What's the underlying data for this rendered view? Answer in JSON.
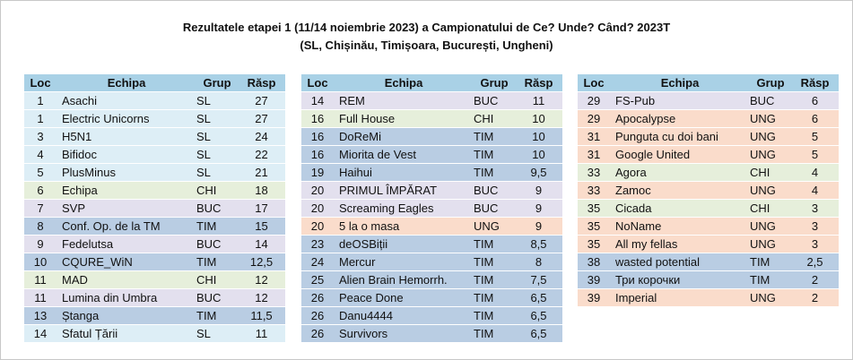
{
  "title_line1": "Rezultatele etapei 1 (11/14 noiembrie 2023) a Campionatului de Ce? Unde? Când? 2023T",
  "title_line2": "(SL, Chișinău, Timișoara, București, Ungheni)",
  "headers": {
    "loc": "Loc",
    "team": "Echipa",
    "group": "Grup",
    "points": "Răsp"
  },
  "tables": [
    {
      "rows": [
        {
          "loc": "1",
          "team": "Asachi",
          "group": "SL",
          "points": "27"
        },
        {
          "loc": "1",
          "team": "Electric Unicorns",
          "group": "SL",
          "points": "27"
        },
        {
          "loc": "3",
          "team": "H5N1",
          "group": "SL",
          "points": "24"
        },
        {
          "loc": "4",
          "team": "Bifidoc",
          "group": "SL",
          "points": "22"
        },
        {
          "loc": "5",
          "team": "PlusMinus",
          "group": "SL",
          "points": "21"
        },
        {
          "loc": "6",
          "team": "Echipa",
          "group": "CHI",
          "points": "18"
        },
        {
          "loc": "7",
          "team": "SVP",
          "group": "BUC",
          "points": "17"
        },
        {
          "loc": "8",
          "team": "Conf. Op. de la TM",
          "group": "TIM",
          "points": "15"
        },
        {
          "loc": "9",
          "team": "Fedelutsa",
          "group": "BUC",
          "points": "14"
        },
        {
          "loc": "10",
          "team": "CQURE_WiN",
          "group": "TIM",
          "points": "12,5"
        },
        {
          "loc": "11",
          "team": "MAD",
          "group": "CHI",
          "points": "12"
        },
        {
          "loc": "11",
          "team": "Lumina din Umbra",
          "group": "BUC",
          "points": "12"
        },
        {
          "loc": "13",
          "team": "Ștanga",
          "group": "TIM",
          "points": "11,5"
        },
        {
          "loc": "14",
          "team": "Sfatul Țării",
          "group": "SL",
          "points": "11"
        }
      ]
    },
    {
      "rows": [
        {
          "loc": "14",
          "team": "REM",
          "group": "BUC",
          "points": "11"
        },
        {
          "loc": "16",
          "team": "Full House",
          "group": "CHI",
          "points": "10"
        },
        {
          "loc": "16",
          "team": "DoReMi",
          "group": "TIM",
          "points": "10"
        },
        {
          "loc": "16",
          "team": "Miorita de Vest",
          "group": "TIM",
          "points": "10"
        },
        {
          "loc": "19",
          "team": "Haihui",
          "group": "TIM",
          "points": "9,5"
        },
        {
          "loc": "20",
          "team": "PRIMUL ÎMPĂRAT",
          "group": "BUC",
          "points": "9"
        },
        {
          "loc": "20",
          "team": "Screaming Eagles",
          "group": "BUC",
          "points": "9"
        },
        {
          "loc": "20",
          "team": "5 la o masa",
          "group": "UNG",
          "points": "9"
        },
        {
          "loc": "23",
          "team": "deOSBiții",
          "group": "TIM",
          "points": "8,5"
        },
        {
          "loc": "24",
          "team": "Mercur",
          "group": "TIM",
          "points": "8"
        },
        {
          "loc": "25",
          "team": "Alien Brain Hemorrh.",
          "group": "TIM",
          "points": "7,5"
        },
        {
          "loc": "26",
          "team": "Peace Done",
          "group": "TIM",
          "points": "6,5"
        },
        {
          "loc": "26",
          "team": "Danu4444",
          "group": "TIM",
          "points": "6,5"
        },
        {
          "loc": "26",
          "team": "Survivors",
          "group": "TIM",
          "points": "6,5"
        }
      ]
    },
    {
      "rows": [
        {
          "loc": "29",
          "team": "FS-Pub",
          "group": "BUC",
          "points": "6"
        },
        {
          "loc": "29",
          "team": "Apocalypse",
          "group": "UNG",
          "points": "6"
        },
        {
          "loc": "31",
          "team": "Punguta cu doi bani",
          "group": "UNG",
          "points": "5"
        },
        {
          "loc": "31",
          "team": "Google United",
          "group": "UNG",
          "points": "5"
        },
        {
          "loc": "33",
          "team": "Agora",
          "group": "CHI",
          "points": "4"
        },
        {
          "loc": "33",
          "team": "Zamoc",
          "group": "UNG",
          "points": "4"
        },
        {
          "loc": "35",
          "team": "Cicada",
          "group": "CHI",
          "points": "3"
        },
        {
          "loc": "35",
          "team": "NoName",
          "group": "UNG",
          "points": "3"
        },
        {
          "loc": "35",
          "team": "All my fellas",
          "group": "UNG",
          "points": "3"
        },
        {
          "loc": "38",
          "team": "wasted potential",
          "group": "TIM",
          "points": "2,5"
        },
        {
          "loc": "39",
          "team": "Три корочки",
          "group": "TIM",
          "points": "2"
        },
        {
          "loc": "39",
          "team": "Imperial",
          "group": "UNG",
          "points": "2"
        }
      ]
    }
  ],
  "colors": {
    "header": "#a9d1e6",
    "SL": "#ddeef6",
    "CHI": "#e6efdb",
    "BUC": "#e3e0ee",
    "TIM": "#b9cde3",
    "UNG": "#fadccb"
  }
}
